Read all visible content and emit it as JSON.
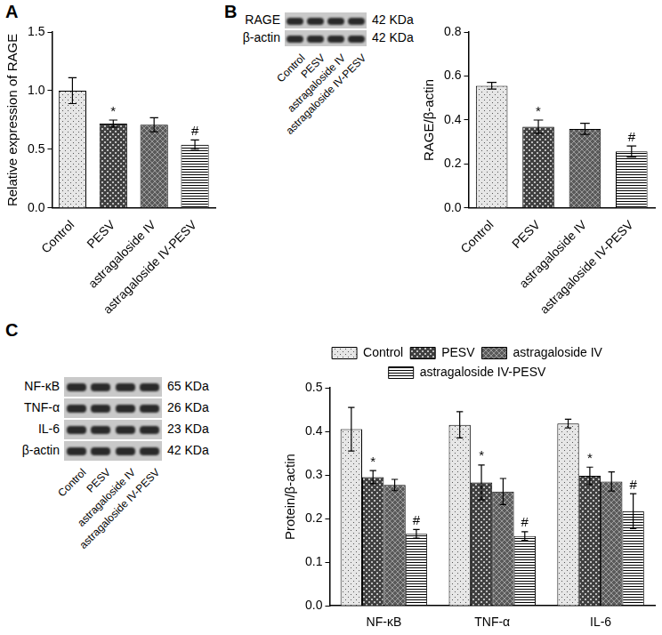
{
  "chart_data": [
    {
      "type": "bar",
      "y_label": "Relative expression of RAGE",
      "categories": [
        "Control",
        "PESV",
        "astragaloside IV",
        "astragaloside IV-PESV"
      ],
      "values": [
        1.0,
        0.72,
        0.71,
        0.54
      ],
      "errors": [
        0.11,
        0.03,
        0.06,
        0.04
      ],
      "marks": [
        null,
        "*",
        null,
        "#"
      ],
      "colors": [
        "#e6e6e6",
        "#404040",
        "#5a5a5a",
        "#ffffff"
      ],
      "ylim": [
        0,
        1.5
      ],
      "yticks": [
        {
          "value": 0,
          "label": "0.0"
        },
        0.5,
        {
          "value": 1,
          "label": "1.0"
        },
        1.5
      ],
      "grid": false
    },
    {
      "type": "bar",
      "y_label": "RAGE/β-actin",
      "categories": [
        "Control",
        "PESV",
        "astragaloside IV",
        "astragaloside IV-PESV"
      ],
      "values": [
        0.556,
        0.37,
        0.36,
        0.257
      ],
      "errors": [
        0.015,
        0.03,
        0.025,
        0.025
      ],
      "marks": [
        null,
        "*",
        null,
        "#"
      ],
      "colors": [
        "#e6e6e6",
        "#404040",
        "#5a5a5a",
        "#ffffff"
      ],
      "ylim": [
        0,
        0.8
      ],
      "yticks": [
        {
          "value": 0,
          "label": "0.0"
        },
        0.2,
        0.4,
        0.6,
        0.8
      ],
      "grid": false
    },
    {
      "type": "bar",
      "y_label": "Protein/β-actin",
      "categories": [
        "NF-κB",
        "TNF-α",
        "IL-6"
      ],
      "series": [
        {
          "name": "Control",
          "color": "#e6e6e6",
          "values": [
            0.405,
            0.415,
            0.418
          ],
          "errors": [
            0.05,
            0.03,
            0.01
          ],
          "marks": [
            null,
            null,
            null
          ]
        },
        {
          "name": "PESV",
          "color": "#404040",
          "values": [
            0.295,
            0.283,
            0.298
          ],
          "errors": [
            0.015,
            0.04,
            0.02
          ],
          "marks": [
            "*",
            "*",
            "*"
          ]
        },
        {
          "name": "astragaloside IV",
          "color": "#5a5a5a",
          "values": [
            0.277,
            0.262,
            0.285
          ],
          "errors": [
            0.013,
            0.03,
            0.022
          ],
          "marks": [
            null,
            null,
            null
          ]
        },
        {
          "name": "astragaloside IV-PESV",
          "color": "#ffffff",
          "values": [
            0.165,
            0.16,
            0.217
          ],
          "errors": [
            0.01,
            0.01,
            0.04
          ],
          "marks": [
            "#",
            "#",
            "#"
          ]
        }
      ],
      "ylim": [
        0,
        0.5
      ],
      "yticks": [
        {
          "value": 0,
          "label": "0.0"
        },
        0.1,
        0.2,
        0.3,
        0.4,
        0.5
      ],
      "legend": "top",
      "grid": false
    }
  ],
  "panel_labels": [
    "A",
    "B",
    "C"
  ],
  "blots": [
    {
      "panel": "B",
      "rows": [
        {
          "label": "RAGE",
          "size": "42 KDa"
        },
        {
          "label": "β-actin",
          "size": "42 KDa"
        }
      ],
      "lanes": [
        "Control",
        "PESV",
        "astragaloside IV",
        "astragaloside IV-PESV"
      ]
    },
    {
      "panel": "C",
      "rows": [
        {
          "label": "NF-κB",
          "size": "65 KDa"
        },
        {
          "label": "TNF-α",
          "size": "26 KDa"
        },
        {
          "label": "IL-6",
          "size": "23 KDa"
        },
        {
          "label": "β-actin",
          "size": "42 KDa"
        }
      ],
      "lanes": [
        "Control",
        "PESV",
        "astragaloside IV",
        "astragaloside IV-PESV"
      ]
    }
  ]
}
